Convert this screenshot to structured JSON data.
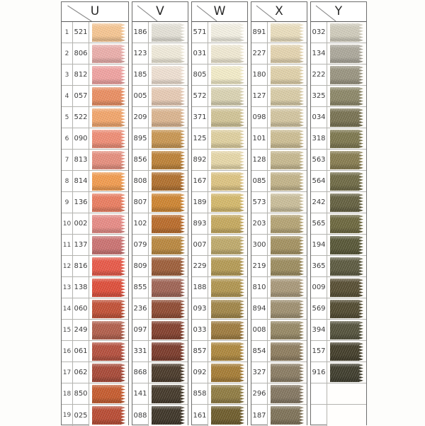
{
  "card": {
    "columns": [
      {
        "letter": "U",
        "rows": [
          {
            "n": "1",
            "code": "521",
            "color": "#F6C693"
          },
          {
            "n": "2",
            "code": "806",
            "color": "#EBAFAB"
          },
          {
            "n": "3",
            "code": "812",
            "color": "#F0A3A1"
          },
          {
            "n": "4",
            "code": "057",
            "color": "#EA8F63"
          },
          {
            "n": "5",
            "code": "522",
            "color": "#F2A66C"
          },
          {
            "n": "6",
            "code": "090",
            "color": "#EF8E76"
          },
          {
            "n": "7",
            "code": "813",
            "color": "#E68F7E"
          },
          {
            "n": "8",
            "code": "814",
            "color": "#F29C50"
          },
          {
            "n": "9",
            "code": "136",
            "color": "#EA7E61"
          },
          {
            "n": "10",
            "code": "002",
            "color": "#E78C86"
          },
          {
            "n": "11",
            "code": "137",
            "color": "#CB7372"
          },
          {
            "n": "12",
            "code": "816",
            "color": "#E85A49"
          },
          {
            "n": "13",
            "code": "138",
            "color": "#DE4F3B"
          },
          {
            "n": "14",
            "code": "060",
            "color": "#C25137"
          },
          {
            "n": "15",
            "code": "249",
            "color": "#B25F4C"
          },
          {
            "n": "16",
            "code": "061",
            "color": "#B5503E"
          },
          {
            "n": "17",
            "code": "062",
            "color": "#A84A38"
          },
          {
            "n": "18",
            "code": "850",
            "color": "#C65C2F"
          },
          {
            "n": "19",
            "code": "025",
            "color": "#B94C34"
          }
        ]
      },
      {
        "letter": "V",
        "rows": [
          {
            "code": "186",
            "color": "#E4E1D7"
          },
          {
            "code": "123",
            "color": "#F0EADA"
          },
          {
            "code": "185",
            "color": "#EFE0D2"
          },
          {
            "code": "005",
            "color": "#E7CBB5"
          },
          {
            "code": "209",
            "color": "#DBB590"
          },
          {
            "code": "895",
            "color": "#C99753"
          },
          {
            "code": "856",
            "color": "#BD8238"
          },
          {
            "code": "808",
            "color": "#B2712F"
          },
          {
            "code": "807",
            "color": "#CE8532"
          },
          {
            "code": "102",
            "color": "#BA6C2B"
          },
          {
            "code": "079",
            "color": "#BA8840"
          },
          {
            "code": "809",
            "color": "#9E5F3B"
          },
          {
            "code": "855",
            "color": "#9F6455"
          },
          {
            "code": "236",
            "color": "#904C34"
          },
          {
            "code": "097",
            "color": "#84412F"
          },
          {
            "code": "331",
            "color": "#7C3C2C"
          },
          {
            "code": "868",
            "color": "#4B3B2B"
          },
          {
            "code": "141",
            "color": "#453A2B"
          },
          {
            "code": "088",
            "color": "#3F3629"
          }
        ]
      },
      {
        "letter": "W",
        "rows": [
          {
            "code": "571",
            "color": "#F3F0E3"
          },
          {
            "code": "031",
            "color": "#F0E9D3"
          },
          {
            "code": "805",
            "color": "#F3ECC9"
          },
          {
            "code": "572",
            "color": "#DAD3B3"
          },
          {
            "code": "371",
            "color": "#D1C497"
          },
          {
            "code": "125",
            "color": "#DFD0A0"
          },
          {
            "code": "892",
            "color": "#E6D7A8"
          },
          {
            "code": "167",
            "color": "#DDC483"
          },
          {
            "code": "189",
            "color": "#D4B96C"
          },
          {
            "code": "893",
            "color": "#C5A95F"
          },
          {
            "code": "007",
            "color": "#BFAA6C"
          },
          {
            "code": "229",
            "color": "#B59B56"
          },
          {
            "code": "188",
            "color": "#B19651"
          },
          {
            "code": "093",
            "color": "#A18649"
          },
          {
            "code": "033",
            "color": "#9F7C40"
          },
          {
            "code": "857",
            "color": "#AE883F"
          },
          {
            "code": "092",
            "color": "#A67D36"
          },
          {
            "code": "858",
            "color": "#907C43"
          },
          {
            "code": "161",
            "color": "#6F5D2D"
          }
        ]
      },
      {
        "letter": "X",
        "rows": [
          {
            "code": "891",
            "color": "#EADEBE"
          },
          {
            "code": "227",
            "color": "#E4D4B0"
          },
          {
            "code": "180",
            "color": "#E0D1AA"
          },
          {
            "code": "127",
            "color": "#D9CCA7"
          },
          {
            "code": "098",
            "color": "#D3C5A0"
          },
          {
            "code": "101",
            "color": "#CDBE94"
          },
          {
            "code": "128",
            "color": "#C7B990"
          },
          {
            "code": "085",
            "color": "#C3B48A"
          },
          {
            "code": "573",
            "color": "#CABE9A"
          },
          {
            "code": "203",
            "color": "#B5A475"
          },
          {
            "code": "300",
            "color": "#A49262"
          },
          {
            "code": "219",
            "color": "#9D8D60"
          },
          {
            "code": "810",
            "color": "#A9997A"
          },
          {
            "code": "894",
            "color": "#9F9071"
          },
          {
            "code": "008",
            "color": "#978966"
          },
          {
            "code": "854",
            "color": "#8F7E60"
          },
          {
            "code": "327",
            "color": "#8B7D64"
          },
          {
            "code": "296",
            "color": "#847762"
          },
          {
            "code": "187",
            "color": "#7F7359"
          }
        ]
      },
      {
        "letter": "Y",
        "rows": [
          {
            "code": "032",
            "color": "#D0CCBC"
          },
          {
            "code": "134",
            "color": "#ACA89B"
          },
          {
            "code": "222",
            "color": "#9A9581"
          },
          {
            "code": "325",
            "color": "#8D8869"
          },
          {
            "code": "034",
            "color": "#797353"
          },
          {
            "code": "318",
            "color": "#7E784F"
          },
          {
            "code": "563",
            "color": "#887D51"
          },
          {
            "code": "564",
            "color": "#706B46"
          },
          {
            "code": "242",
            "color": "#656141"
          },
          {
            "code": "565",
            "color": "#6D683F"
          },
          {
            "code": "194",
            "color": "#585737"
          },
          {
            "code": "365",
            "color": "#5D5B41"
          },
          {
            "code": "009",
            "color": "#584F34"
          },
          {
            "code": "569",
            "color": "#524B31"
          },
          {
            "code": "394",
            "color": "#55533D"
          },
          {
            "code": "157",
            "color": "#443F2B"
          },
          {
            "code": "916",
            "color": "#403E2E"
          },
          {
            "code": "",
            "color": ""
          },
          {
            "code": "",
            "color": ""
          }
        ]
      }
    ]
  }
}
